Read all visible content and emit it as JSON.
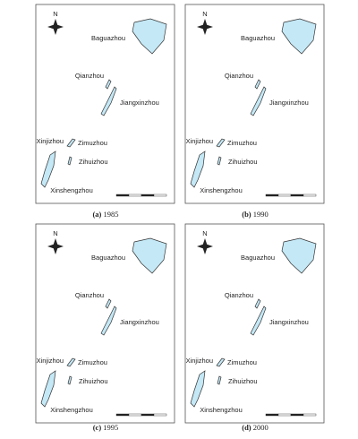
{
  "panels": [
    {
      "label": "(a)",
      "year": "1985",
      "north": "N",
      "islands": [
        "Baguazhou",
        "Qianzhou",
        "Jiangxinzhou",
        "Xinjizhou",
        "Zimuzhou",
        "Zihuizhou",
        "Xinshengzhou"
      ]
    },
    {
      "label": "(b)",
      "year": "1990",
      "north": "N",
      "islands": [
        "Baguazhou",
        "Qianzhou",
        "Jiangxinzhou",
        "Xinjizhou",
        "Zimuzhou",
        "Zihuizhou",
        "Xinshengzhou"
      ]
    },
    {
      "label": "(c)",
      "year": "1995",
      "north": "N",
      "islands": [
        "Baguazhou",
        "Qianzhou",
        "Jiangxinzhou",
        "Xinjizhou",
        "Zimuzhou",
        "Zihuizhou",
        "Xinshengzhou"
      ]
    },
    {
      "label": "(d)",
      "year": "2000",
      "north": "N",
      "islands": [
        "Baguazhou",
        "Qianzhou",
        "Jiangxinzhou",
        "Xinjizhou",
        "Zimuzhou",
        "Zihuizhou",
        "Xinshengzhou"
      ]
    }
  ]
}
